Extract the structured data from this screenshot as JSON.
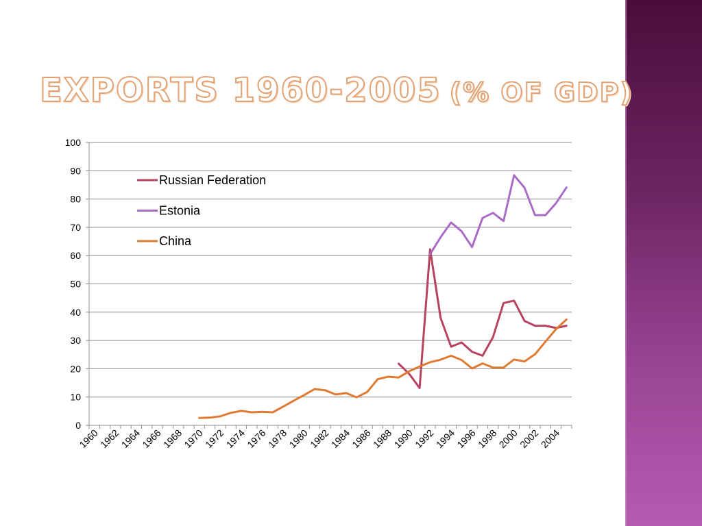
{
  "slide": {
    "title_main": "EXPORTS 1960-2005",
    "title_sub": "(% OF GDP)"
  },
  "colors": {
    "title_stroke": "#e2a273",
    "sidebar": "#7b2f70"
  },
  "chart_data": {
    "type": "line",
    "xlim": [
      1960,
      2005
    ],
    "ylim": [
      0,
      100
    ],
    "y_ticks": [
      0,
      10,
      20,
      30,
      40,
      50,
      60,
      70,
      80,
      90,
      100
    ],
    "x_tick_labels": [
      "1960",
      "1962",
      "1964",
      "1966",
      "1968",
      "1970",
      "1972",
      "1974",
      "1976",
      "1978",
      "1980",
      "1982",
      "1984",
      "1986",
      "1988",
      "1990",
      "1992",
      "1994",
      "1996",
      "1998",
      "2000",
      "2002",
      "2004"
    ],
    "grid": "horizontal",
    "legend_position": "top-left",
    "series": [
      {
        "name": "Russian Federation",
        "color": "#b7425f",
        "points": [
          [
            1989,
            21.8
          ],
          [
            1990,
            18.2
          ],
          [
            1991,
            13.2
          ],
          [
            1992,
            62.2
          ],
          [
            1993,
            38.0
          ],
          [
            1994,
            27.8
          ],
          [
            1995,
            29.3
          ],
          [
            1996,
            26.0
          ],
          [
            1997,
            24.6
          ],
          [
            1998,
            31.2
          ],
          [
            1999,
            43.2
          ],
          [
            2000,
            44.1
          ],
          [
            2001,
            36.9
          ],
          [
            2002,
            35.2
          ],
          [
            2003,
            35.2
          ],
          [
            2004,
            34.4
          ],
          [
            2005,
            35.2
          ]
        ]
      },
      {
        "name": "Estonia",
        "color": "#a86bc6",
        "points": [
          [
            1992,
            60.5
          ],
          [
            1993,
            66.5
          ],
          [
            1994,
            71.7
          ],
          [
            1995,
            68.6
          ],
          [
            1996,
            63.0
          ],
          [
            1997,
            73.3
          ],
          [
            1998,
            75.1
          ],
          [
            1999,
            72.2
          ],
          [
            2000,
            88.4
          ],
          [
            2001,
            84.0
          ],
          [
            2002,
            74.3
          ],
          [
            2003,
            74.3
          ],
          [
            2004,
            78.5
          ],
          [
            2005,
            84.1
          ]
        ]
      },
      {
        "name": "China",
        "color": "#e07a33",
        "points": [
          [
            1970,
            2.6
          ],
          [
            1971,
            2.7
          ],
          [
            1972,
            3.2
          ],
          [
            1973,
            4.4
          ],
          [
            1974,
            5.1
          ],
          [
            1975,
            4.6
          ],
          [
            1976,
            4.8
          ],
          [
            1977,
            4.6
          ],
          [
            1978,
            6.6
          ],
          [
            1979,
            8.7
          ],
          [
            1980,
            10.7
          ],
          [
            1981,
            12.8
          ],
          [
            1982,
            12.4
          ],
          [
            1983,
            10.9
          ],
          [
            1984,
            11.4
          ],
          [
            1985,
            9.9
          ],
          [
            1986,
            11.8
          ],
          [
            1987,
            16.3
          ],
          [
            1988,
            17.2
          ],
          [
            1989,
            16.9
          ],
          [
            1990,
            19.1
          ],
          [
            1991,
            20.8
          ],
          [
            1992,
            22.3
          ],
          [
            1993,
            23.2
          ],
          [
            1994,
            24.6
          ],
          [
            1995,
            23.1
          ],
          [
            1996,
            20.1
          ],
          [
            1997,
            21.9
          ],
          [
            1998,
            20.4
          ],
          [
            1999,
            20.4
          ],
          [
            2000,
            23.3
          ],
          [
            2001,
            22.6
          ],
          [
            2002,
            25.1
          ],
          [
            2003,
            29.6
          ],
          [
            2004,
            34.0
          ],
          [
            2005,
            37.4
          ]
        ]
      }
    ]
  }
}
